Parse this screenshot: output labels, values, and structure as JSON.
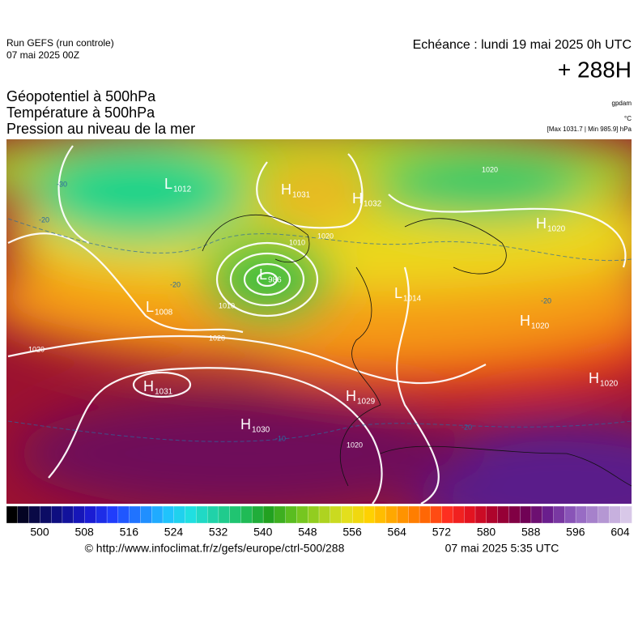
{
  "header": {
    "run": "Run GEFS (run controle)",
    "run_date": "07 mai 2025 00Z",
    "valid": "Echéance : lundi 19 mai 2025 0h UTC",
    "lead": "+ 288H"
  },
  "fields": [
    "Géopotentiel à 500hPa",
    "Température à 500hPa",
    "Pression au niveau de la mer"
  ],
  "units": {
    "geopotential": "gpdam",
    "temperature": "°C",
    "pressure": "[Max 1031.7 | Min 985.9] hPa"
  },
  "centers": [
    {
      "letter": "H",
      "value": "1031"
    },
    {
      "letter": "L",
      "value": "1012"
    },
    {
      "letter": "H",
      "value": "1032"
    },
    {
      "letter": "H",
      "value": "1020"
    },
    {
      "letter": "L",
      "value": "986"
    },
    {
      "letter": "L",
      "value": "1008"
    },
    {
      "letter": "L",
      "value": "1014"
    },
    {
      "letter": "H",
      "value": "1020"
    },
    {
      "letter": "H",
      "value": "1031"
    },
    {
      "letter": "H",
      "value": "1029"
    },
    {
      "letter": "H",
      "value": "1030"
    },
    {
      "letter": "H",
      "value": "1020"
    }
  ],
  "isobar_labels": [
    "1010",
    "1020",
    "1010",
    "1020",
    "1020",
    "1020",
    "1020"
  ],
  "temperature_labels": [
    "-30",
    "-20",
    "-20",
    "-20",
    "-20",
    "-10"
  ],
  "colorbar": {
    "ticks": [
      500,
      508,
      516,
      524,
      532,
      540,
      548,
      556,
      564,
      572,
      580,
      588,
      596,
      604
    ]
  },
  "footer": {
    "url": "© http://www.infoclimat.fr/z/gefs/europe/ctrl-500/288",
    "generated": "07 mai 2025  5:35 UTC"
  }
}
